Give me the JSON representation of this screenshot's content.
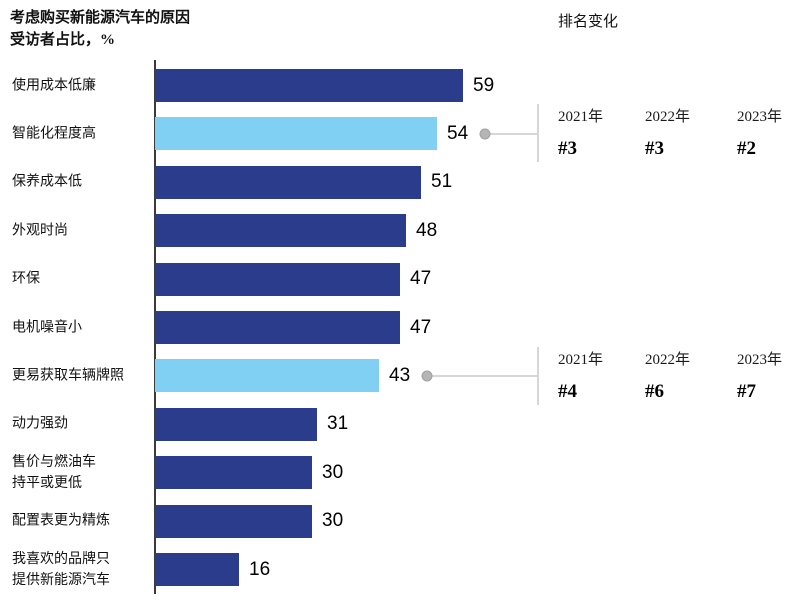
{
  "page": {
    "title": "考虑购买新能源汽车的原因",
    "subtitle": "受访者占比，%",
    "ranking_header": "排名变化"
  },
  "chart_data": {
    "type": "bar",
    "orientation": "horizontal",
    "title": "考虑购买新能源汽车的原因",
    "xlabel": "受访者占比, %",
    "xlim": [
      0,
      65
    ],
    "grid": false,
    "legend": false,
    "categories": [
      "使用成本低廉",
      "智能化程度高",
      "保养成本低",
      "外观时尚",
      "环保",
      "电机噪音小",
      "更易获取车辆牌照",
      "动力强劲",
      "售价与燃油车\n持平或更低",
      "配置表更为精炼",
      "我喜欢的品牌只\n提供新能源汽车"
    ],
    "values": [
      59,
      54,
      51,
      48,
      47,
      47,
      43,
      31,
      30,
      30,
      16
    ],
    "colors": {
      "bar": "#2B3C8C",
      "highlight_bar": "#7FD0F3",
      "axis": "#3a3a3a",
      "callout": "#b5b5b5"
    },
    "annotations": [
      {
        "category": "智能化程度高",
        "value": 54,
        "entries": [
          {
            "year": "2021年",
            "rank": "#3"
          },
          {
            "year": "2022年",
            "rank": "#3"
          },
          {
            "year": "2023年",
            "rank": "#2"
          }
        ]
      },
      {
        "category": "更易获取车辆牌照",
        "value": 43,
        "entries": [
          {
            "year": "2021年",
            "rank": "#4"
          },
          {
            "year": "2022年",
            "rank": "#6"
          },
          {
            "year": "2023年",
            "rank": "#7"
          }
        ]
      }
    ]
  }
}
